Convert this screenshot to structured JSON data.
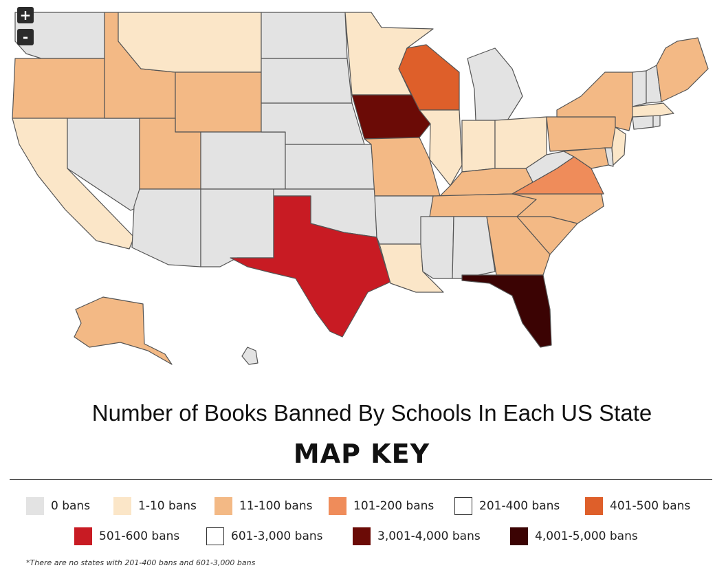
{
  "controls": {
    "zoom_in": "+",
    "zoom_out": "-"
  },
  "title": "Number of Books Banned By Schools In Each US State",
  "key_heading": "MAP KEY",
  "legend": [
    {
      "label": "0 bans",
      "color": "#e3e3e3",
      "outline": false
    },
    {
      "label": "1-10 bans",
      "color": "#fbe6c8",
      "outline": false
    },
    {
      "label": "11-100 bans",
      "color": "#f3b985",
      "outline": false
    },
    {
      "label": "101-200 bans",
      "color": "#ef8c5a",
      "outline": false
    },
    {
      "label": "201-400 bans",
      "color": "#ffffff",
      "outline": true
    },
    {
      "label": "401-500 bans",
      "color": "#de5f2a",
      "outline": false
    },
    {
      "label": "501-600 bans",
      "color": "#c81b23",
      "outline": false
    },
    {
      "label": "601-3,000 bans",
      "color": "#ffffff",
      "outline": true
    },
    {
      "label": "3,001-4,000 bans",
      "color": "#6b0b06",
      "outline": false
    },
    {
      "label": "4,001-5,000 bans",
      "color": "#3b0303",
      "outline": false
    }
  ],
  "footnote": "*There are no states with 201-400 bans and 601-3,000 bans",
  "states": {
    "Washington": "0 bans",
    "Oregon": "11-100 bans",
    "California": "1-10 bans",
    "Nevada": "0 bans",
    "Idaho": "11-100 bans",
    "Montana": "1-10 bans",
    "Wyoming": "11-100 bans",
    "Utah": "11-100 bans",
    "Arizona": "0 bans",
    "Colorado": "0 bans",
    "New Mexico": "0 bans",
    "North Dakota": "0 bans",
    "South Dakota": "0 bans",
    "Nebraska": "0 bans",
    "Kansas": "0 bans",
    "Oklahoma": "0 bans",
    "Texas": "501-600 bans",
    "Minnesota": "1-10 bans",
    "Iowa": "3,001-4,000 bans",
    "Missouri": "11-100 bans",
    "Arkansas": "0 bans",
    "Louisiana": "1-10 bans",
    "Wisconsin": "401-500 bans",
    "Illinois": "1-10 bans",
    "Michigan": "0 bans",
    "Indiana": "1-10 bans",
    "Ohio": "1-10 bans",
    "Kentucky": "11-100 bans",
    "Tennessee": "11-100 bans",
    "Mississippi": "0 bans",
    "Alabama": "0 bans",
    "Georgia": "11-100 bans",
    "Florida": "4,001-5,000 bans",
    "South Carolina": "11-100 bans",
    "North Carolina": "11-100 bans",
    "Virginia": "101-200 bans",
    "West Virginia": "0 bans",
    "Pennsylvania": "11-100 bans",
    "New York": "11-100 bans",
    "Maryland": "11-100 bans",
    "Delaware": "0 bans",
    "New Jersey": "1-10 bans",
    "Connecticut": "0 bans",
    "Rhode Island": "0 bans",
    "Massachusetts": "1-10 bans",
    "Vermont": "0 bans",
    "New Hampshire": "0 bans",
    "Maine": "11-100 bans",
    "Alaska": "11-100 bans",
    "Hawaii": "0 bans"
  }
}
